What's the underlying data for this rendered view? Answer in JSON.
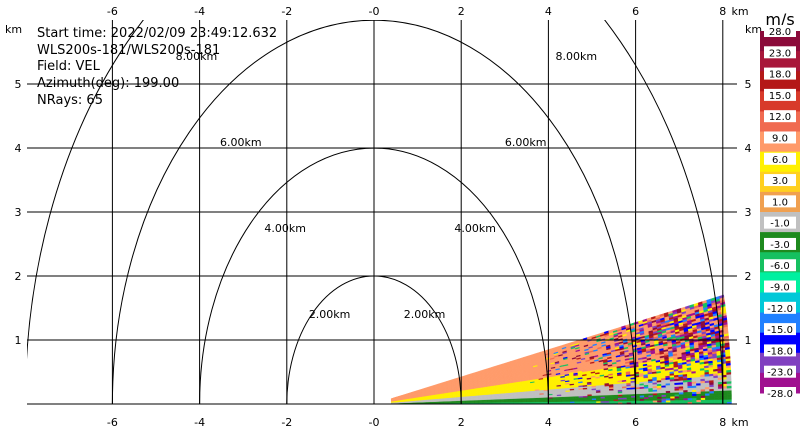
{
  "info": {
    "start_time": "Start time: 2022/02/09 23:49:12.632",
    "radar": "WLS200s-181/WLS200s-181",
    "field": "Field: VEL",
    "azimuth": "Azimuth(deg): 199.00",
    "nrays": "NRays: 65"
  },
  "chart_data": {
    "type": "heatmap",
    "title": "",
    "xlabel": "km",
    "ylabel": "km",
    "xlim": [
      -8.5,
      8.5
    ],
    "ylim": [
      0,
      5.9
    ],
    "x_ticks": [
      -6,
      -4,
      -2,
      0,
      2,
      4,
      6,
      8
    ],
    "x_tick_labels": [
      "-6",
      "-4",
      "-2",
      "-0",
      "2",
      "4",
      "6",
      "8"
    ],
    "y_ticks": [
      1,
      2,
      3,
      4,
      5
    ],
    "y_tick_labels": [
      "1",
      "2",
      "3",
      "4",
      "5"
    ],
    "grid": true,
    "range_rings_km": [
      2,
      4,
      6,
      8
    ],
    "range_ring_labels": [
      "2.00km",
      "4.00km",
      "6.00km",
      "8.00km"
    ],
    "sector": {
      "elevation_deg_range": [
        0,
        12
      ],
      "range_km": [
        0.4,
        8.2
      ],
      "side": "right",
      "description_bands": [
        {
          "elev_from": 0,
          "elev_to": 0.6,
          "value": -6.0
        },
        {
          "elev_from": 0.6,
          "elev_to": 1.6,
          "value": -3.0
        },
        {
          "elev_from": 1.6,
          "elev_to": 3.2,
          "value": -1.0
        },
        {
          "elev_from": 3.2,
          "elev_to": 6.0,
          "value": 6.0
        },
        {
          "elev_from": 6.0,
          "elev_to": 12.0,
          "value": 9.0
        }
      ]
    },
    "colorbar": {
      "unit": "m/s",
      "labels": [
        "28.0",
        "23.0",
        "18.0",
        "15.0",
        "12.0",
        "9.0",
        "6.0",
        "3.0",
        "1.0",
        "-1.0",
        "-3.0",
        "-6.0",
        "-9.0",
        "-12.0",
        "-15.0",
        "-18.0",
        "-23.0",
        "-28.0"
      ],
      "colors": [
        "#8b0a3a",
        "#a8163a",
        "#b41818",
        "#d83a2a",
        "#f06a50",
        "#ff9a6a",
        "#fff000",
        "#ffd020",
        "#f0a050",
        "#c0c0c0",
        "#1e8a1e",
        "#16c060",
        "#00f0a0",
        "#00c8d8",
        "#2080ff",
        "#0000ff",
        "#8040c0",
        "#a01090"
      ]
    }
  }
}
